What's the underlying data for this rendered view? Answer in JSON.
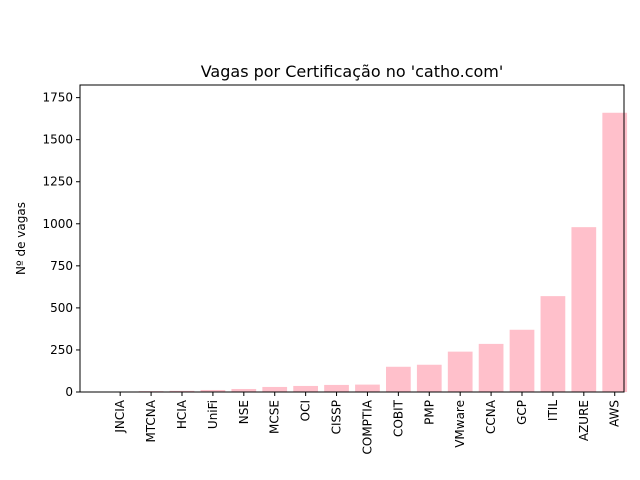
{
  "chart_data": {
    "type": "bar",
    "title": "Vagas por Certificação no 'catho.com'",
    "xlabel": "",
    "ylabel": "Nº de vagas",
    "categories": [
      "JNCIA",
      "MTCNA",
      "HCIA",
      "UniFi",
      "NSE",
      "MCSE",
      "OCI",
      "CISSP",
      "COMPTIA",
      "COBIT",
      "PMP",
      "VMware",
      "CCNA",
      "GCP",
      "ITIL",
      "AZURE",
      "AWS"
    ],
    "values": [
      2,
      5,
      7,
      12,
      18,
      30,
      36,
      42,
      44,
      150,
      162,
      240,
      286,
      370,
      570,
      980,
      1660
    ],
    "ylim": [
      0,
      1825
    ],
    "yticks": [
      0,
      250,
      500,
      750,
      1000,
      1250,
      1500,
      1750
    ],
    "bar_color": "#ffc0cb",
    "grid": false,
    "legend": "none"
  }
}
